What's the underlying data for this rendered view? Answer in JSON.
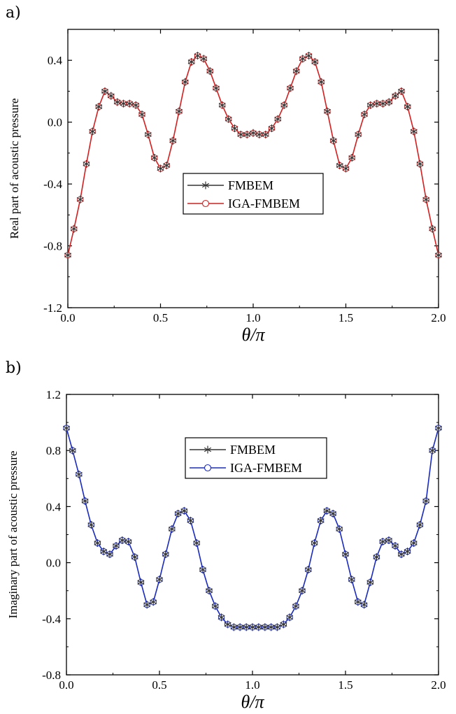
{
  "chart_data": [
    {
      "panel_label": "a)",
      "type": "line",
      "title": "",
      "xlabel": "θ/π",
      "ylabel": "Real part of acoustic pressure",
      "xlim": [
        0.0,
        2.0
      ],
      "ylim": [
        -1.2,
        0.6
      ],
      "xticks": [
        "0.0",
        "0.5",
        "1.0",
        "1.5",
        "2.0"
      ],
      "yticks": [
        "-1.2",
        "-0.8",
        "-0.4",
        "0.0",
        "0.4"
      ],
      "ytick_values": [
        -1.2,
        -0.8,
        -0.4,
        0.0,
        0.4
      ],
      "xtick_values": [
        0.0,
        0.5,
        1.0,
        1.5,
        2.0
      ],
      "legend_position": "center",
      "accent_color": "#d42020",
      "series": [
        {
          "name": "FMBEM",
          "color": "#333333",
          "marker": "asterisk",
          "x": [
            0.0,
            0.033,
            0.067,
            0.1,
            0.133,
            0.167,
            0.2,
            0.233,
            0.267,
            0.3,
            0.333,
            0.367,
            0.4,
            0.433,
            0.467,
            0.5,
            0.533,
            0.567,
            0.6,
            0.633,
            0.667,
            0.7,
            0.733,
            0.767,
            0.8,
            0.833,
            0.867,
            0.9,
            0.933,
            0.967,
            1.0,
            1.033,
            1.067,
            1.1,
            1.133,
            1.167,
            1.2,
            1.233,
            1.267,
            1.3,
            1.333,
            1.367,
            1.4,
            1.433,
            1.467,
            1.5,
            1.533,
            1.567,
            1.6,
            1.633,
            1.667,
            1.7,
            1.733,
            1.767,
            1.8,
            1.833,
            1.867,
            1.9,
            1.933,
            1.967,
            2.0
          ],
          "y": [
            -0.86,
            -0.69,
            -0.5,
            -0.27,
            -0.06,
            0.1,
            0.2,
            0.17,
            0.13,
            0.12,
            0.12,
            0.11,
            0.05,
            -0.08,
            -0.23,
            -0.3,
            -0.28,
            -0.12,
            0.07,
            0.26,
            0.39,
            0.43,
            0.41,
            0.33,
            0.22,
            0.11,
            0.02,
            -0.04,
            -0.08,
            -0.08,
            -0.07,
            -0.08,
            -0.08,
            -0.04,
            0.02,
            0.11,
            0.22,
            0.33,
            0.41,
            0.43,
            0.39,
            0.26,
            0.07,
            -0.12,
            -0.28,
            -0.3,
            -0.23,
            -0.08,
            0.05,
            0.11,
            0.12,
            0.12,
            0.13,
            0.17,
            0.2,
            0.1,
            -0.06,
            -0.27,
            -0.5,
            -0.69,
            -0.86
          ]
        },
        {
          "name": "IGA-FMBEM",
          "color": "#d42020",
          "marker": "circle",
          "x": [
            0.0,
            0.033,
            0.067,
            0.1,
            0.133,
            0.167,
            0.2,
            0.233,
            0.267,
            0.3,
            0.333,
            0.367,
            0.4,
            0.433,
            0.467,
            0.5,
            0.533,
            0.567,
            0.6,
            0.633,
            0.667,
            0.7,
            0.733,
            0.767,
            0.8,
            0.833,
            0.867,
            0.9,
            0.933,
            0.967,
            1.0,
            1.033,
            1.067,
            1.1,
            1.133,
            1.167,
            1.2,
            1.233,
            1.267,
            1.3,
            1.333,
            1.367,
            1.4,
            1.433,
            1.467,
            1.5,
            1.533,
            1.567,
            1.6,
            1.633,
            1.667,
            1.7,
            1.733,
            1.767,
            1.8,
            1.833,
            1.867,
            1.9,
            1.933,
            1.967,
            2.0
          ],
          "y": [
            -0.86,
            -0.69,
            -0.5,
            -0.27,
            -0.06,
            0.1,
            0.2,
            0.17,
            0.13,
            0.12,
            0.12,
            0.11,
            0.05,
            -0.08,
            -0.23,
            -0.3,
            -0.28,
            -0.12,
            0.07,
            0.26,
            0.39,
            0.43,
            0.41,
            0.33,
            0.22,
            0.11,
            0.02,
            -0.04,
            -0.08,
            -0.08,
            -0.07,
            -0.08,
            -0.08,
            -0.04,
            0.02,
            0.11,
            0.22,
            0.33,
            0.41,
            0.43,
            0.39,
            0.26,
            0.07,
            -0.12,
            -0.28,
            -0.3,
            -0.23,
            -0.08,
            0.05,
            0.11,
            0.12,
            0.12,
            0.13,
            0.17,
            0.2,
            0.1,
            -0.06,
            -0.27,
            -0.5,
            -0.69,
            -0.86
          ]
        }
      ]
    },
    {
      "panel_label": "b)",
      "type": "line",
      "title": "",
      "xlabel": "θ/π",
      "ylabel": "Imaginary part of acoustic pressure",
      "xlim": [
        0.0,
        2.0
      ],
      "ylim": [
        -0.8,
        1.2
      ],
      "xticks": [
        "0.0",
        "0.5",
        "1.0",
        "1.5",
        "2.0"
      ],
      "yticks": [
        "-0.8",
        "-0.4",
        "0.0",
        "0.4",
        "0.8",
        "1.2"
      ],
      "ytick_values": [
        -0.8,
        -0.4,
        0.0,
        0.4,
        0.8,
        1.2
      ],
      "xtick_values": [
        0.0,
        0.5,
        1.0,
        1.5,
        2.0
      ],
      "legend_position": "top-center",
      "accent_color": "#1a2bc0",
      "series": [
        {
          "name": "FMBEM",
          "color": "#333333",
          "marker": "asterisk",
          "x": [
            0.0,
            0.033,
            0.067,
            0.1,
            0.133,
            0.167,
            0.2,
            0.233,
            0.267,
            0.3,
            0.333,
            0.367,
            0.4,
            0.433,
            0.467,
            0.5,
            0.533,
            0.567,
            0.6,
            0.633,
            0.667,
            0.7,
            0.733,
            0.767,
            0.8,
            0.833,
            0.867,
            0.9,
            0.933,
            0.967,
            1.0,
            1.033,
            1.067,
            1.1,
            1.133,
            1.167,
            1.2,
            1.233,
            1.267,
            1.3,
            1.333,
            1.367,
            1.4,
            1.433,
            1.467,
            1.5,
            1.533,
            1.567,
            1.6,
            1.633,
            1.667,
            1.7,
            1.733,
            1.767,
            1.8,
            1.833,
            1.867,
            1.9,
            1.933,
            1.967,
            2.0
          ],
          "y": [
            0.96,
            0.8,
            0.63,
            0.44,
            0.27,
            0.14,
            0.08,
            0.06,
            0.12,
            0.16,
            0.15,
            0.04,
            -0.14,
            -0.3,
            -0.28,
            -0.12,
            0.06,
            0.24,
            0.35,
            0.37,
            0.3,
            0.14,
            -0.05,
            -0.2,
            -0.31,
            -0.39,
            -0.44,
            -0.46,
            -0.46,
            -0.46,
            -0.46,
            -0.46,
            -0.46,
            -0.46,
            -0.46,
            -0.44,
            -0.39,
            -0.31,
            -0.2,
            -0.05,
            0.14,
            0.3,
            0.37,
            0.35,
            0.24,
            0.06,
            -0.12,
            -0.28,
            -0.3,
            -0.14,
            0.04,
            0.15,
            0.16,
            0.12,
            0.06,
            0.08,
            0.14,
            0.27,
            0.44,
            0.8,
            0.96
          ]
        },
        {
          "name": "IGA-FMBEM",
          "color": "#1a2bc0",
          "marker": "circle",
          "x": [
            0.0,
            0.033,
            0.067,
            0.1,
            0.133,
            0.167,
            0.2,
            0.233,
            0.267,
            0.3,
            0.333,
            0.367,
            0.4,
            0.433,
            0.467,
            0.5,
            0.533,
            0.567,
            0.6,
            0.633,
            0.667,
            0.7,
            0.733,
            0.767,
            0.8,
            0.833,
            0.867,
            0.9,
            0.933,
            0.967,
            1.0,
            1.033,
            1.067,
            1.1,
            1.133,
            1.167,
            1.2,
            1.233,
            1.267,
            1.3,
            1.333,
            1.367,
            1.4,
            1.433,
            1.467,
            1.5,
            1.533,
            1.567,
            1.6,
            1.633,
            1.667,
            1.7,
            1.733,
            1.767,
            1.8,
            1.833,
            1.867,
            1.9,
            1.933,
            1.967,
            2.0
          ],
          "y": [
            0.96,
            0.8,
            0.63,
            0.44,
            0.27,
            0.14,
            0.08,
            0.06,
            0.12,
            0.16,
            0.15,
            0.04,
            -0.14,
            -0.3,
            -0.28,
            -0.12,
            0.06,
            0.24,
            0.35,
            0.37,
            0.3,
            0.14,
            -0.05,
            -0.2,
            -0.31,
            -0.39,
            -0.44,
            -0.46,
            -0.46,
            -0.46,
            -0.46,
            -0.46,
            -0.46,
            -0.46,
            -0.46,
            -0.44,
            -0.39,
            -0.31,
            -0.2,
            -0.05,
            0.14,
            0.3,
            0.37,
            0.35,
            0.24,
            0.06,
            -0.12,
            -0.28,
            -0.3,
            -0.14,
            0.04,
            0.15,
            0.16,
            0.12,
            0.06,
            0.08,
            0.14,
            0.27,
            0.44,
            0.8,
            0.96
          ]
        }
      ]
    }
  ]
}
